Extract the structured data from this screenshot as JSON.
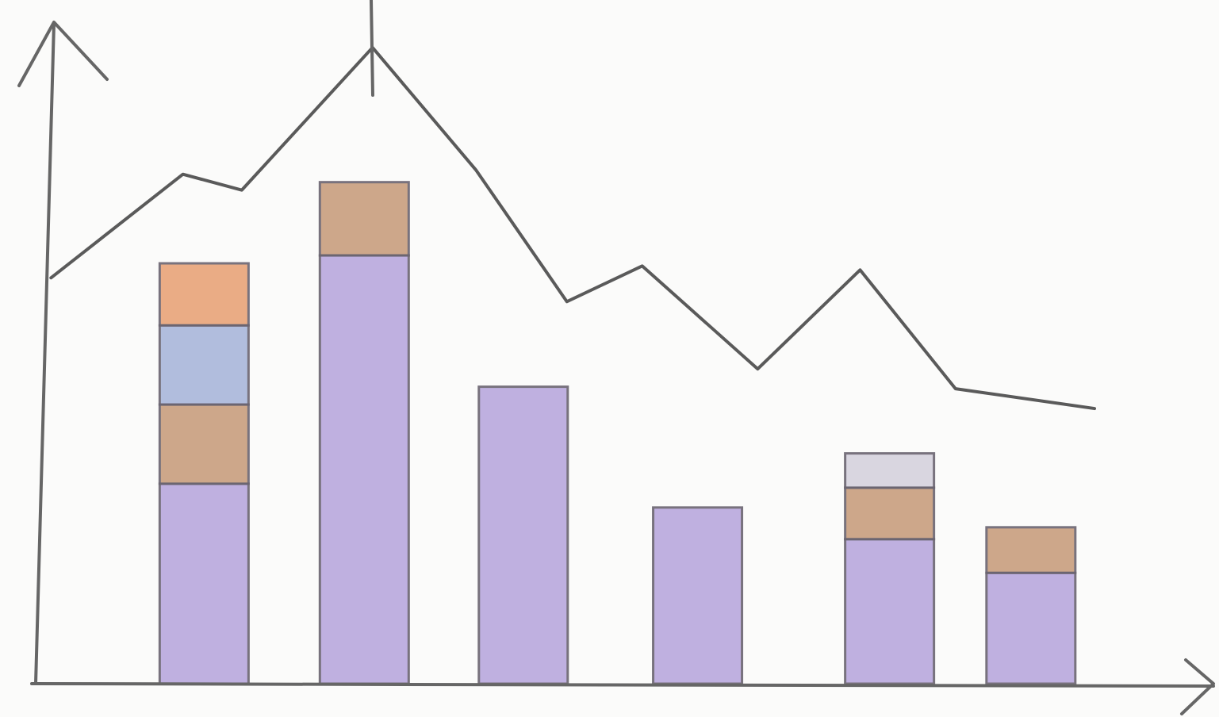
{
  "chart_data": {
    "type": "combo",
    "xlim": [
      0,
      100
    ],
    "ylim": [
      0,
      100
    ],
    "bars": {
      "x": [
        14.3,
        27.9,
        41.4,
        56.2,
        72.5,
        84.5
      ],
      "series": [
        {
          "color": "#b9a8de",
          "values": [
            30.3,
            64.9,
            45.0,
            26.7,
            21.9,
            16.8
          ]
        },
        {
          "color": "#c99f7e",
          "values": [
            12.0,
            11.1,
            null,
            null,
            7.8,
            6.9
          ]
        },
        {
          "color": "#aab7da",
          "values": [
            12.0,
            null,
            null,
            null,
            null,
            null
          ]
        },
        {
          "color": "#e9a479",
          "values": [
            9.4,
            null,
            null,
            null,
            null,
            null
          ]
        },
        {
          "color": "#d6d2de",
          "values": [
            null,
            null,
            null,
            null,
            5.2,
            null
          ]
        }
      ]
    },
    "line": {
      "color": "#5a5a5a",
      "x": [
        1.3,
        12.5,
        17.5,
        28.6,
        37.4,
        45.1,
        51.5,
        61.3,
        70.0,
        78.1,
        89.9
      ],
      "values": [
        61.5,
        77.2,
        74.8,
        96.4,
        77.8,
        57.9,
        63.3,
        47.7,
        62.7,
        44.7,
        41.7
      ]
    }
  }
}
